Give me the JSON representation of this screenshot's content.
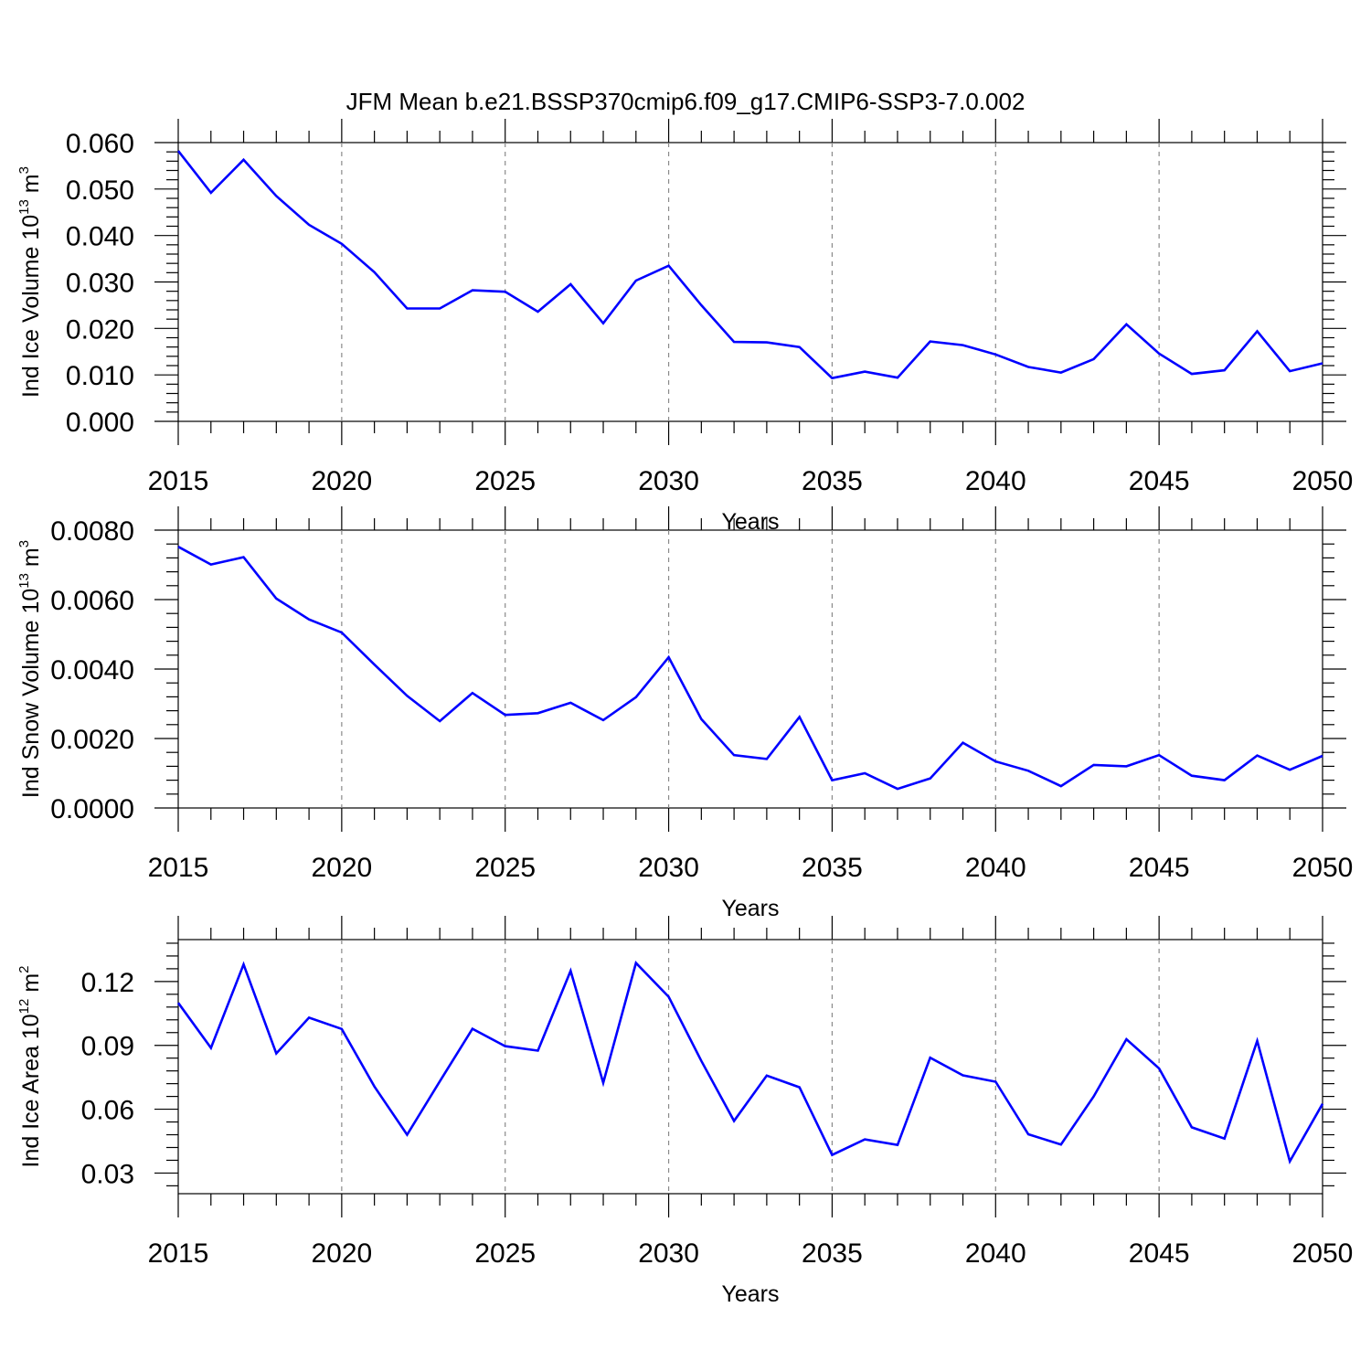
{
  "figure": {
    "title": "JFM Mean b.e21.BSSP370cmip6.f09_g17.CMIP6-SSP3-7.0.002",
    "line_color": "#0000ff",
    "grid": "vertical dashed at major x ticks"
  },
  "chart_data": [
    {
      "type": "line",
      "xlabel": "Years",
      "ylabel": {
        "text": "Ind Ice Volume 10",
        "exponent": "13",
        "unit": " m",
        "unit_exponent": "3"
      },
      "xlim": [
        2015,
        2050
      ],
      "ylim": [
        0,
        0.06
      ],
      "xticks": [
        2015,
        2020,
        2025,
        2030,
        2035,
        2040,
        2045,
        2050
      ],
      "yticks": [
        "0.000",
        "0.010",
        "0.020",
        "0.030",
        "0.040",
        "0.050",
        "0.060"
      ],
      "yticks_values": [
        0,
        0.01,
        0.02,
        0.03,
        0.04,
        0.05,
        0.06
      ],
      "series": [
        {
          "x": [
            2015,
            2016,
            2017,
            2018,
            2019,
            2020,
            2021,
            2022,
            2023,
            2024,
            2025,
            2026,
            2027,
            2028,
            2029,
            2030,
            2031,
            2032,
            2033,
            2034,
            2035,
            2036,
            2037,
            2038,
            2039,
            2040,
            2041,
            2042,
            2043,
            2044,
            2045,
            2046,
            2047,
            2048,
            2049,
            2050
          ],
          "values": [
            0.0582,
            0.0492,
            0.0563,
            0.0485,
            0.0423,
            0.0382,
            0.0321,
            0.0243,
            0.0243,
            0.0282,
            0.0279,
            0.0236,
            0.0295,
            0.0211,
            0.0303,
            0.0335,
            0.025,
            0.0171,
            0.017,
            0.016,
            0.0093,
            0.0107,
            0.0094,
            0.0172,
            0.0164,
            0.0144,
            0.0117,
            0.0105,
            0.0134,
            0.0209,
            0.0146,
            0.0102,
            0.011,
            0.0194,
            0.0108,
            0.0125
          ]
        }
      ]
    },
    {
      "type": "line",
      "xlabel": "Years",
      "ylabel": {
        "text": "Ind Snow Volume 10",
        "exponent": "13",
        "unit": " m",
        "unit_exponent": "3"
      },
      "xlim": [
        2015,
        2050
      ],
      "ylim": [
        0,
        0.008
      ],
      "xticks": [
        2015,
        2020,
        2025,
        2030,
        2035,
        2040,
        2045,
        2050
      ],
      "yticks": [
        "0.0000",
        "0.0020",
        "0.0040",
        "0.0060",
        "0.0080"
      ],
      "yticks_values": [
        0,
        0.002,
        0.004,
        0.006,
        0.008
      ],
      "series": [
        {
          "x": [
            2015,
            2016,
            2017,
            2018,
            2019,
            2020,
            2021,
            2022,
            2023,
            2024,
            2025,
            2026,
            2027,
            2028,
            2029,
            2030,
            2031,
            2032,
            2033,
            2034,
            2035,
            2036,
            2037,
            2038,
            2039,
            2040,
            2041,
            2042,
            2043,
            2044,
            2045,
            2046,
            2047,
            2048,
            2049,
            2050
          ],
          "values": [
            0.00752,
            0.00701,
            0.00722,
            0.00603,
            0.00543,
            0.00505,
            0.00413,
            0.00323,
            0.0025,
            0.00331,
            0.00268,
            0.00273,
            0.00303,
            0.00253,
            0.00319,
            0.00434,
            0.00256,
            0.00152,
            0.00141,
            0.00262,
            0.0008,
            0.001,
            0.00055,
            0.00085,
            0.00188,
            0.00134,
            0.00107,
            0.00063,
            0.00124,
            0.0012,
            0.00152,
            0.00093,
            0.0008,
            0.00151,
            0.0011,
            0.0015
          ]
        }
      ]
    },
    {
      "type": "line",
      "xlabel": "Years",
      "ylabel": {
        "text": "Ind Ice Area 10",
        "exponent": "12",
        "unit": " m",
        "unit_exponent": "2"
      },
      "xlim": [
        2015,
        2050
      ],
      "ylim": [
        0.0203,
        0.1397
      ],
      "xticks": [
        2015,
        2020,
        2025,
        2030,
        2035,
        2040,
        2045,
        2050
      ],
      "yticks": [
        "0.03",
        "0.06",
        "0.09",
        "0.12"
      ],
      "yticks_values": [
        0.03,
        0.06,
        0.09,
        0.12
      ],
      "series": [
        {
          "x": [
            2015,
            2016,
            2017,
            2018,
            2019,
            2020,
            2021,
            2022,
            2023,
            2024,
            2025,
            2026,
            2027,
            2028,
            2029,
            2030,
            2031,
            2032,
            2033,
            2034,
            2035,
            2036,
            2037,
            2038,
            2039,
            2040,
            2041,
            2042,
            2043,
            2044,
            2045,
            2046,
            2047,
            2048,
            2049,
            2050
          ],
          "values": [
            0.11,
            0.0888,
            0.128,
            0.0862,
            0.103,
            0.0977,
            0.0707,
            0.048,
            0.0731,
            0.0978,
            0.0896,
            0.0875,
            0.125,
            0.0724,
            0.1287,
            0.1128,
            0.0827,
            0.0545,
            0.0758,
            0.0703,
            0.0385,
            0.0458,
            0.0432,
            0.0842,
            0.0759,
            0.0729,
            0.0482,
            0.0434,
            0.066,
            0.0929,
            0.0792,
            0.0515,
            0.0462,
            0.0921,
            0.0355,
            0.0625
          ]
        }
      ]
    }
  ]
}
